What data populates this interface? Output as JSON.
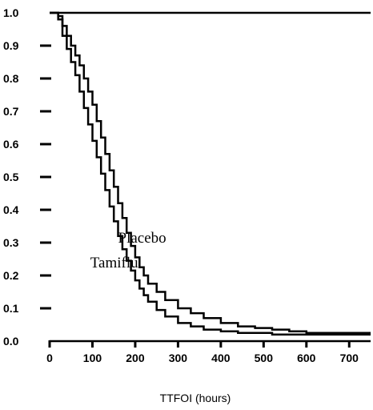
{
  "chart_data": {
    "type": "line",
    "title": "",
    "xlabel": "TTFOI (hours)",
    "ylabel": "",
    "xlim": [
      0,
      750
    ],
    "ylim": [
      0,
      1.0
    ],
    "x_ticks": [
      "0",
      "100",
      "200",
      "300",
      "400",
      "500",
      "600",
      "700"
    ],
    "y_ticks": [
      "0.0",
      "0.1",
      "0.2",
      "0.3",
      "0.4",
      "0.5",
      "0.6",
      "0.7",
      "0.8",
      "0.9",
      "1.0"
    ],
    "grid": false,
    "legend": "none",
    "series": [
      {
        "name": "Placebo",
        "x": [
          0,
          12,
          20,
          30,
          40,
          50,
          60,
          70,
          80,
          90,
          100,
          110,
          120,
          130,
          140,
          150,
          160,
          170,
          180,
          190,
          200,
          210,
          220,
          230,
          250,
          270,
          300,
          330,
          360,
          400,
          440,
          480,
          520,
          560,
          600,
          650,
          700,
          750
        ],
        "y": [
          1.0,
          1.0,
          0.99,
          0.96,
          0.93,
          0.9,
          0.87,
          0.84,
          0.8,
          0.76,
          0.72,
          0.67,
          0.62,
          0.57,
          0.52,
          0.47,
          0.42,
          0.375,
          0.33,
          0.29,
          0.255,
          0.225,
          0.2,
          0.175,
          0.15,
          0.125,
          0.1,
          0.085,
          0.07,
          0.055,
          0.045,
          0.04,
          0.035,
          0.03,
          0.025,
          0.025,
          0.025,
          0.025
        ]
      },
      {
        "name": "Tamiflu",
        "x": [
          0,
          12,
          20,
          30,
          40,
          50,
          60,
          70,
          80,
          90,
          100,
          110,
          120,
          130,
          140,
          150,
          160,
          170,
          180,
          190,
          200,
          210,
          220,
          230,
          250,
          270,
          300,
          330,
          360,
          400,
          440,
          480,
          520,
          560,
          600,
          650,
          700,
          750
        ],
        "y": [
          1.0,
          1.0,
          0.98,
          0.93,
          0.89,
          0.85,
          0.81,
          0.76,
          0.71,
          0.66,
          0.61,
          0.56,
          0.51,
          0.46,
          0.41,
          0.365,
          0.32,
          0.28,
          0.245,
          0.215,
          0.185,
          0.16,
          0.14,
          0.12,
          0.095,
          0.075,
          0.055,
          0.045,
          0.035,
          0.03,
          0.025,
          0.025,
          0.02,
          0.02,
          0.02,
          0.02,
          0.02,
          0.02
        ]
      }
    ],
    "annotations": [
      {
        "text": "Placebo",
        "x": 160,
        "y": 0.3
      },
      {
        "text": "Tamiflu",
        "x": 95,
        "y": 0.225
      }
    ],
    "reference_line": {
      "y": 1.0
    }
  }
}
